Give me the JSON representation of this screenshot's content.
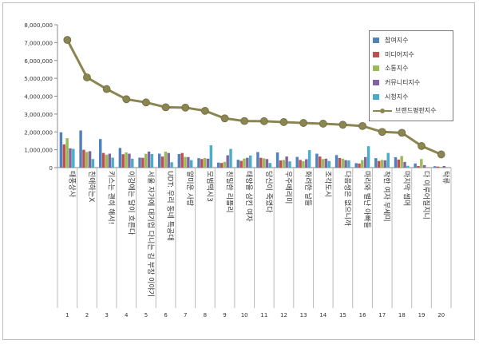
{
  "chart_data": {
    "type": "bar",
    "title": "",
    "xlabel": "",
    "ylabel": "",
    "ylim": [
      0,
      8000000
    ],
    "yticks": [
      "0",
      "1,000,000",
      "2,000,000",
      "3,000,000",
      "4,000,000",
      "5,000,000",
      "6,000,000",
      "7,000,000",
      "8,000,000"
    ],
    "grid": false,
    "legend_position": "top-right",
    "x": [
      "1",
      "2",
      "3",
      "4",
      "5",
      "6",
      "7",
      "8",
      "9",
      "10",
      "11",
      "12",
      "13",
      "14",
      "15",
      "16",
      "17",
      "18",
      "19",
      "20"
    ],
    "categories": [
      "태풍상사",
      "친애하는X",
      "키스는 괜히 해서!",
      "이강에는 달이 흐른다",
      "서울 자가에 대기업 다니는 김 부장 이야기",
      "UDT: 우리 동네 특공대",
      "얄미운 사랑",
      "모범택시3",
      "친밀한 리플리",
      "태양을 삼킨 여자",
      "당신이 죽였다",
      "우주메리미",
      "화려한 날들",
      "조각도시",
      "다음생은 없으니까",
      "마리와 별난 아빠들",
      "착한 여자 부세미",
      "마지막 썸머",
      "다 이루어질지니",
      "탁류"
    ],
    "series": [
      {
        "name": "참여지수",
        "color": "#4f81bd",
        "values": [
          1980000,
          2080000,
          1600000,
          1100000,
          560000,
          780000,
          760000,
          530000,
          280000,
          440000,
          870000,
          850000,
          600000,
          780000,
          700000,
          250000,
          530000,
          580000,
          230000,
          80000
        ]
      },
      {
        "name": "미디어지수",
        "color": "#c0504d",
        "values": [
          1300000,
          1000000,
          820000,
          750000,
          550000,
          620000,
          820000,
          480000,
          260000,
          380000,
          550000,
          400000,
          430000,
          620000,
          540000,
          230000,
          370000,
          450000,
          90000,
          60000
        ]
      },
      {
        "name": "소통지수",
        "color": "#9bbb59",
        "values": [
          1650000,
          880000,
          720000,
          850000,
          770000,
          900000,
          600000,
          540000,
          320000,
          510000,
          520000,
          430000,
          360000,
          480000,
          500000,
          420000,
          430000,
          650000,
          480000,
          40000
        ]
      },
      {
        "name": "커뮤니티지수",
        "color": "#8064a2",
        "values": [
          1080000,
          920000,
          780000,
          780000,
          900000,
          820000,
          590000,
          500000,
          690000,
          550000,
          480000,
          620000,
          470000,
          500000,
          420000,
          590000,
          410000,
          320000,
          140000,
          90000
        ]
      },
      {
        "name": "시청지수",
        "color": "#4bacc6",
        "values": [
          1050000,
          480000,
          560000,
          500000,
          760000,
          300000,
          420000,
          1250000,
          1050000,
          680000,
          260000,
          350000,
          980000,
          370000,
          400000,
          1200000,
          820000,
          100000,
          0,
          0
        ]
      },
      {
        "name": "브랜드평판지수",
        "color": "#8b8552",
        "type": "line",
        "values": [
          7150000,
          5050000,
          4400000,
          3830000,
          3650000,
          3380000,
          3360000,
          3180000,
          2760000,
          2610000,
          2600000,
          2550000,
          2500000,
          2460000,
          2400000,
          2330000,
          2000000,
          1950000,
          1210000,
          740000
        ]
      }
    ]
  }
}
